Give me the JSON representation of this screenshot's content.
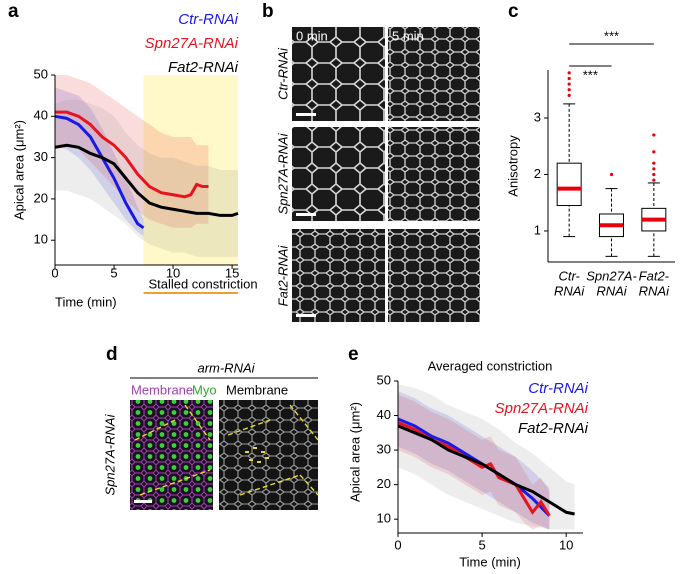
{
  "panel_labels": [
    "a",
    "b",
    "c",
    "d",
    "e"
  ],
  "panel_b": {
    "columns": [
      "0 min",
      "5 min"
    ],
    "rows": [
      "Ctr-RNAi",
      "Spn27A-RNAi",
      "Fat2-RNAi"
    ]
  },
  "panel_d": {
    "title": "arm-RNAi",
    "row": "Spn27A-RNAi",
    "channels": [
      "Membrane",
      "Myo"
    ],
    "right_label": "Membrane"
  },
  "chart_data": [
    {
      "type": "line",
      "xlabel": "Time (min)",
      "ylabel": "Apical area (μm²)",
      "xlim": [
        0,
        15.5
      ],
      "xticks": [
        0,
        5,
        10,
        15
      ],
      "ylim": [
        4,
        50
      ],
      "yticks": [
        10,
        20,
        30,
        40,
        50
      ],
      "annotation": "Stalled constriction",
      "annotation_color": "#f0a030",
      "highlight": [
        7.5,
        15.5
      ],
      "highlight_color": "#fff8c8",
      "series": [
        {
          "name": "Ctr-RNAi",
          "color": "#1a1ae6",
          "x": [
            0,
            1,
            2,
            3,
            4,
            5,
            6,
            7,
            7.5
          ],
          "values": [
            40,
            39.5,
            38,
            35,
            30,
            25,
            19,
            14,
            13
          ],
          "upper": [
            47,
            46,
            45,
            42,
            37,
            31,
            25,
            18,
            15
          ],
          "lower": [
            33,
            32,
            30,
            27,
            23,
            19,
            15,
            12,
            11
          ]
        },
        {
          "name": "Spn27A-RNAi",
          "color": "#e6141e",
          "x": [
            0,
            1,
            2,
            3,
            4,
            5,
            6,
            7,
            8,
            9,
            10,
            11,
            11.5,
            12,
            12.5,
            13
          ],
          "values": [
            41,
            41,
            40,
            38,
            35,
            33,
            30,
            26,
            23,
            21.5,
            21,
            20.5,
            21,
            23.5,
            23,
            23
          ],
          "upper": [
            50,
            50,
            49,
            48,
            46,
            44,
            42,
            40,
            38,
            36,
            35,
            35,
            35,
            33,
            33,
            33
          ],
          "lower": [
            33,
            33,
            32,
            29,
            26,
            23,
            20,
            17,
            15,
            14,
            13,
            13,
            13,
            14,
            14,
            14
          ]
        },
        {
          "name": "Fat2-RNAi",
          "color": "#000000",
          "x": [
            0,
            1,
            2,
            3,
            4,
            5,
            6,
            7,
            8,
            9,
            10,
            11,
            12,
            13,
            14,
            15,
            15.5
          ],
          "values": [
            32.5,
            33,
            32.5,
            31,
            30,
            28.5,
            25,
            21.5,
            19,
            18,
            17.5,
            17,
            16.5,
            16.5,
            16,
            16,
            16.5
          ],
          "upper": [
            43,
            44,
            44,
            43,
            42,
            40,
            36,
            33,
            31,
            30,
            30,
            29,
            28,
            28,
            27,
            27,
            27
          ],
          "lower": [
            22,
            22,
            21,
            20,
            18,
            16,
            14,
            11,
            9,
            8,
            7,
            7,
            6,
            6,
            6,
            6,
            6
          ]
        }
      ]
    },
    {
      "type": "box",
      "ylabel": "Anisotropy",
      "categories": [
        [
          "Ctr-",
          "RNAi"
        ],
        [
          "Spn27A-",
          "RNAi"
        ],
        [
          "Fat2-",
          "RNAi"
        ]
      ],
      "ylim": [
        0.45,
        3.85
      ],
      "yticks": [
        1,
        2,
        3
      ],
      "median_color": "#e8000b",
      "flier_color": "#e8000b",
      "significance": [
        "***",
        "***"
      ],
      "boxes": [
        {
          "whislo": 0.9,
          "q1": 1.45,
          "med": 1.75,
          "q3": 2.2,
          "whishi": 3.25,
          "fliers": [
            3.4,
            3.5,
            3.6,
            3.7,
            3.8
          ]
        },
        {
          "whislo": 0.55,
          "q1": 0.9,
          "med": 1.1,
          "q3": 1.3,
          "whishi": 1.75,
          "fliers": [
            2.0
          ]
        },
        {
          "whislo": 0.55,
          "q1": 1.0,
          "med": 1.2,
          "q3": 1.4,
          "whishi": 1.85,
          "fliers": [
            1.9,
            2.0,
            2.1,
            2.2,
            2.4,
            2.7
          ]
        }
      ]
    },
    {
      "type": "line",
      "title": "Averaged constriction",
      "xlabel": "Time (min)",
      "ylabel": "Apical area (μm²)",
      "xlim": [
        0,
        11
      ],
      "xticks": [
        0,
        5,
        10
      ],
      "ylim": [
        6,
        50
      ],
      "yticks": [
        10,
        20,
        30,
        40,
        50
      ],
      "series": [
        {
          "name": "Ctr-RNAi",
          "color": "#1a1ae6",
          "x": [
            0,
            1,
            2,
            3,
            4,
            5,
            6,
            7,
            8,
            9
          ],
          "values": [
            39,
            37,
            34,
            32,
            29,
            26,
            23,
            20,
            16,
            11
          ],
          "upper": [
            47,
            45,
            42,
            40,
            37,
            34,
            31,
            28,
            24,
            19
          ],
          "lower": [
            31,
            29,
            26,
            24,
            21,
            18,
            15,
            12,
            9,
            7
          ]
        },
        {
          "name": "Spn27A-RNAi",
          "color": "#e6141e",
          "x": [
            0,
            1,
            2,
            3,
            4,
            5,
            5.5,
            6,
            7,
            7.5,
            8,
            8.5,
            9
          ],
          "values": [
            38,
            36,
            33,
            31,
            28,
            25,
            26,
            22,
            20,
            16,
            12,
            15,
            11
          ],
          "upper": [
            46,
            44,
            41,
            39,
            36,
            33,
            34,
            30,
            28,
            24,
            20,
            22,
            18
          ],
          "lower": [
            30,
            28,
            25,
            23,
            20,
            17,
            18,
            14,
            12,
            9,
            7,
            8,
            7
          ]
        },
        {
          "name": "Fat2-RNAi",
          "color": "#000000",
          "x": [
            0,
            1,
            2,
            3,
            4,
            5,
            6,
            7,
            8,
            9,
            10,
            10.5
          ],
          "values": [
            37,
            35,
            33,
            30,
            28,
            26,
            23,
            20,
            18,
            15,
            12,
            11.5
          ],
          "upper": [
            49,
            48,
            46,
            43,
            41,
            39,
            36,
            32,
            29,
            25,
            21,
            20
          ],
          "lower": [
            25,
            23,
            20,
            17,
            15,
            13,
            11,
            9,
            8,
            7,
            7,
            7
          ]
        }
      ]
    }
  ]
}
